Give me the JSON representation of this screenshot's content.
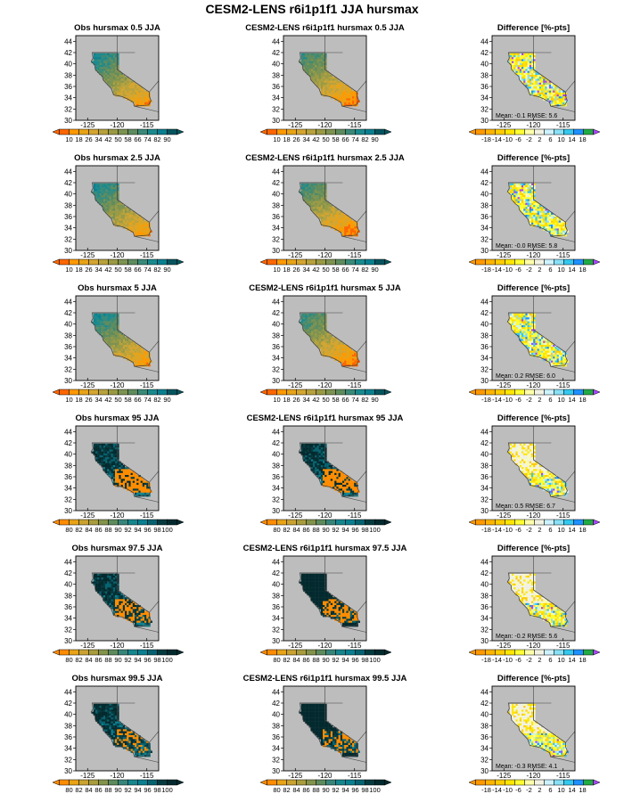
{
  "title": "CESM2-LENS r6i1p1f1 JJA hursmax",
  "lat_labels": [
    "30",
    "32",
    "34",
    "36",
    "38",
    "40",
    "42",
    "44"
  ],
  "lon_labels": [
    "-125",
    "-120",
    "-115"
  ],
  "colors": {
    "land": "#bdbdbd",
    "border": "#444444",
    "abs_low": [
      "#ff6600",
      "#ff9900",
      "#e8a317",
      "#d4a531",
      "#b7a23d",
      "#9a9a45",
      "#7d9351",
      "#5f8c5e",
      "#3b8a79",
      "#1a8a8e",
      "#0b7f90",
      "#06545e"
    ],
    "abs_high": [
      "#ff8c00",
      "#e8a317",
      "#c9a232",
      "#a89c3e",
      "#84934b",
      "#5e8b5d",
      "#37857a",
      "#17858e",
      "#0b7f90",
      "#076270",
      "#053b40",
      "#032a2e"
    ],
    "diff": [
      "#ff9900",
      "#ffb300",
      "#ffcc00",
      "#ffe600",
      "#ffff33",
      "#ffffaa",
      "#f2f2e4",
      "#ccf2ff",
      "#88e0f5",
      "#33c8f0",
      "#1e90ff",
      "#22aa44",
      "#117722",
      "#aa44ff"
    ]
  },
  "rows": [
    {
      "obs_title": "Obs hursmax 0.5 JJA",
      "model_title": "CESM2-LENS r6i1p1f1 hursmax 0.5 JJA",
      "diff_title": "Difference [%-pts]",
      "abs_ticks": [
        "10",
        "18",
        "26",
        "34",
        "42",
        "50",
        "58",
        "66",
        "74",
        "82",
        "90"
      ],
      "diff_ticks": [
        "-18",
        "-14",
        "-10",
        "-6",
        "-2",
        "2",
        "6",
        "10",
        "14",
        "18"
      ],
      "mean_label": "Mean: -0.1",
      "rmse_label": "RMSE: 5.6"
    },
    {
      "obs_title": "Obs hursmax 2.5 JJA",
      "model_title": "CESM2-LENS r6i1p1f1 hursmax 2.5 JJA",
      "diff_title": "Difference [%-pts]",
      "abs_ticks": [
        "10",
        "18",
        "26",
        "34",
        "42",
        "50",
        "58",
        "66",
        "74",
        "82",
        "90"
      ],
      "diff_ticks": [
        "-18",
        "-14",
        "-10",
        "-6",
        "-2",
        "2",
        "6",
        "10",
        "14",
        "18"
      ],
      "mean_label": "Mean: -0.0",
      "rmse_label": "RMSE: 5.8"
    },
    {
      "obs_title": "Obs hursmax 5 JJA",
      "model_title": "CESM2-LENS r6i1p1f1 hursmax 5 JJA",
      "diff_title": "Difference [%-pts]",
      "abs_ticks": [
        "10",
        "18",
        "26",
        "34",
        "42",
        "50",
        "58",
        "66",
        "74",
        "82",
        "90"
      ],
      "diff_ticks": [
        "-18",
        "-14",
        "-10",
        "-6",
        "-2",
        "2",
        "6",
        "10",
        "14",
        "18"
      ],
      "mean_label": "Mean: 0.2",
      "rmse_label": "RMSE: 6.0"
    },
    {
      "obs_title": "Obs hursmax 95 JJA",
      "model_title": "CESM2-LENS r6i1p1f1 hursmax 95 JJA",
      "diff_title": "Difference [%-pts]",
      "abs_ticks": [
        "80",
        "82",
        "84",
        "86",
        "88",
        "90",
        "92",
        "94",
        "96",
        "98",
        "100"
      ],
      "diff_ticks": [
        "-18",
        "-14",
        "-10",
        "-6",
        "-2",
        "2",
        "6",
        "10",
        "14",
        "18"
      ],
      "mean_label": "Mean: 0.5",
      "rmse_label": "RMSE: 6.7"
    },
    {
      "obs_title": "Obs hursmax 97.5 JJA",
      "model_title": "CESM2-LENS r6i1p1f1 hursmax 97.5 JJA",
      "diff_title": "Difference [%-pts]",
      "abs_ticks": [
        "80",
        "82",
        "84",
        "86",
        "88",
        "90",
        "92",
        "94",
        "96",
        "98",
        "100"
      ],
      "diff_ticks": [
        "-18",
        "-14",
        "-10",
        "-6",
        "-2",
        "2",
        "6",
        "10",
        "14",
        "18"
      ],
      "mean_label": "Mean: -0.2",
      "rmse_label": "RMSE: 5.6"
    },
    {
      "obs_title": "Obs hursmax 99.5 JJA",
      "model_title": "CESM2-LENS r6i1p1f1 hursmax 99.5 JJA",
      "diff_title": "Difference [%-pts]",
      "abs_ticks": [
        "80",
        "82",
        "84",
        "86",
        "88",
        "90",
        "92",
        "94",
        "96",
        "98",
        "100"
      ],
      "diff_ticks": [
        "-18",
        "-14",
        "-10",
        "-6",
        "-2",
        "2",
        "6",
        "10",
        "14",
        "18"
      ],
      "mean_label": "Mean: -0.3",
      "rmse_label": "RMSE: 4.1"
    }
  ],
  "chart_data": {
    "type": "heatmap",
    "title": "CESM2-LENS r6i1p1f1 JJA hursmax",
    "region": "California",
    "xlim": [
      -127,
      -113
    ],
    "ylim": [
      30,
      45
    ],
    "panels_per_row": [
      "obs",
      "model",
      "difference"
    ],
    "percentiles": [
      "0.5",
      "2.5",
      "5",
      "95",
      "97.5",
      "99.5"
    ],
    "difference_stats": [
      {
        "percentile": "0.5",
        "mean": -0.1,
        "rmse": 5.6
      },
      {
        "percentile": "2.5",
        "mean": -0.0,
        "rmse": 5.8
      },
      {
        "percentile": "5",
        "mean": 0.2,
        "rmse": 6.0
      },
      {
        "percentile": "95",
        "mean": 0.5,
        "rmse": 6.7
      },
      {
        "percentile": "97.5",
        "mean": -0.2,
        "rmse": 5.6
      },
      {
        "percentile": "99.5",
        "mean": -0.3,
        "rmse": 4.1
      }
    ]
  }
}
